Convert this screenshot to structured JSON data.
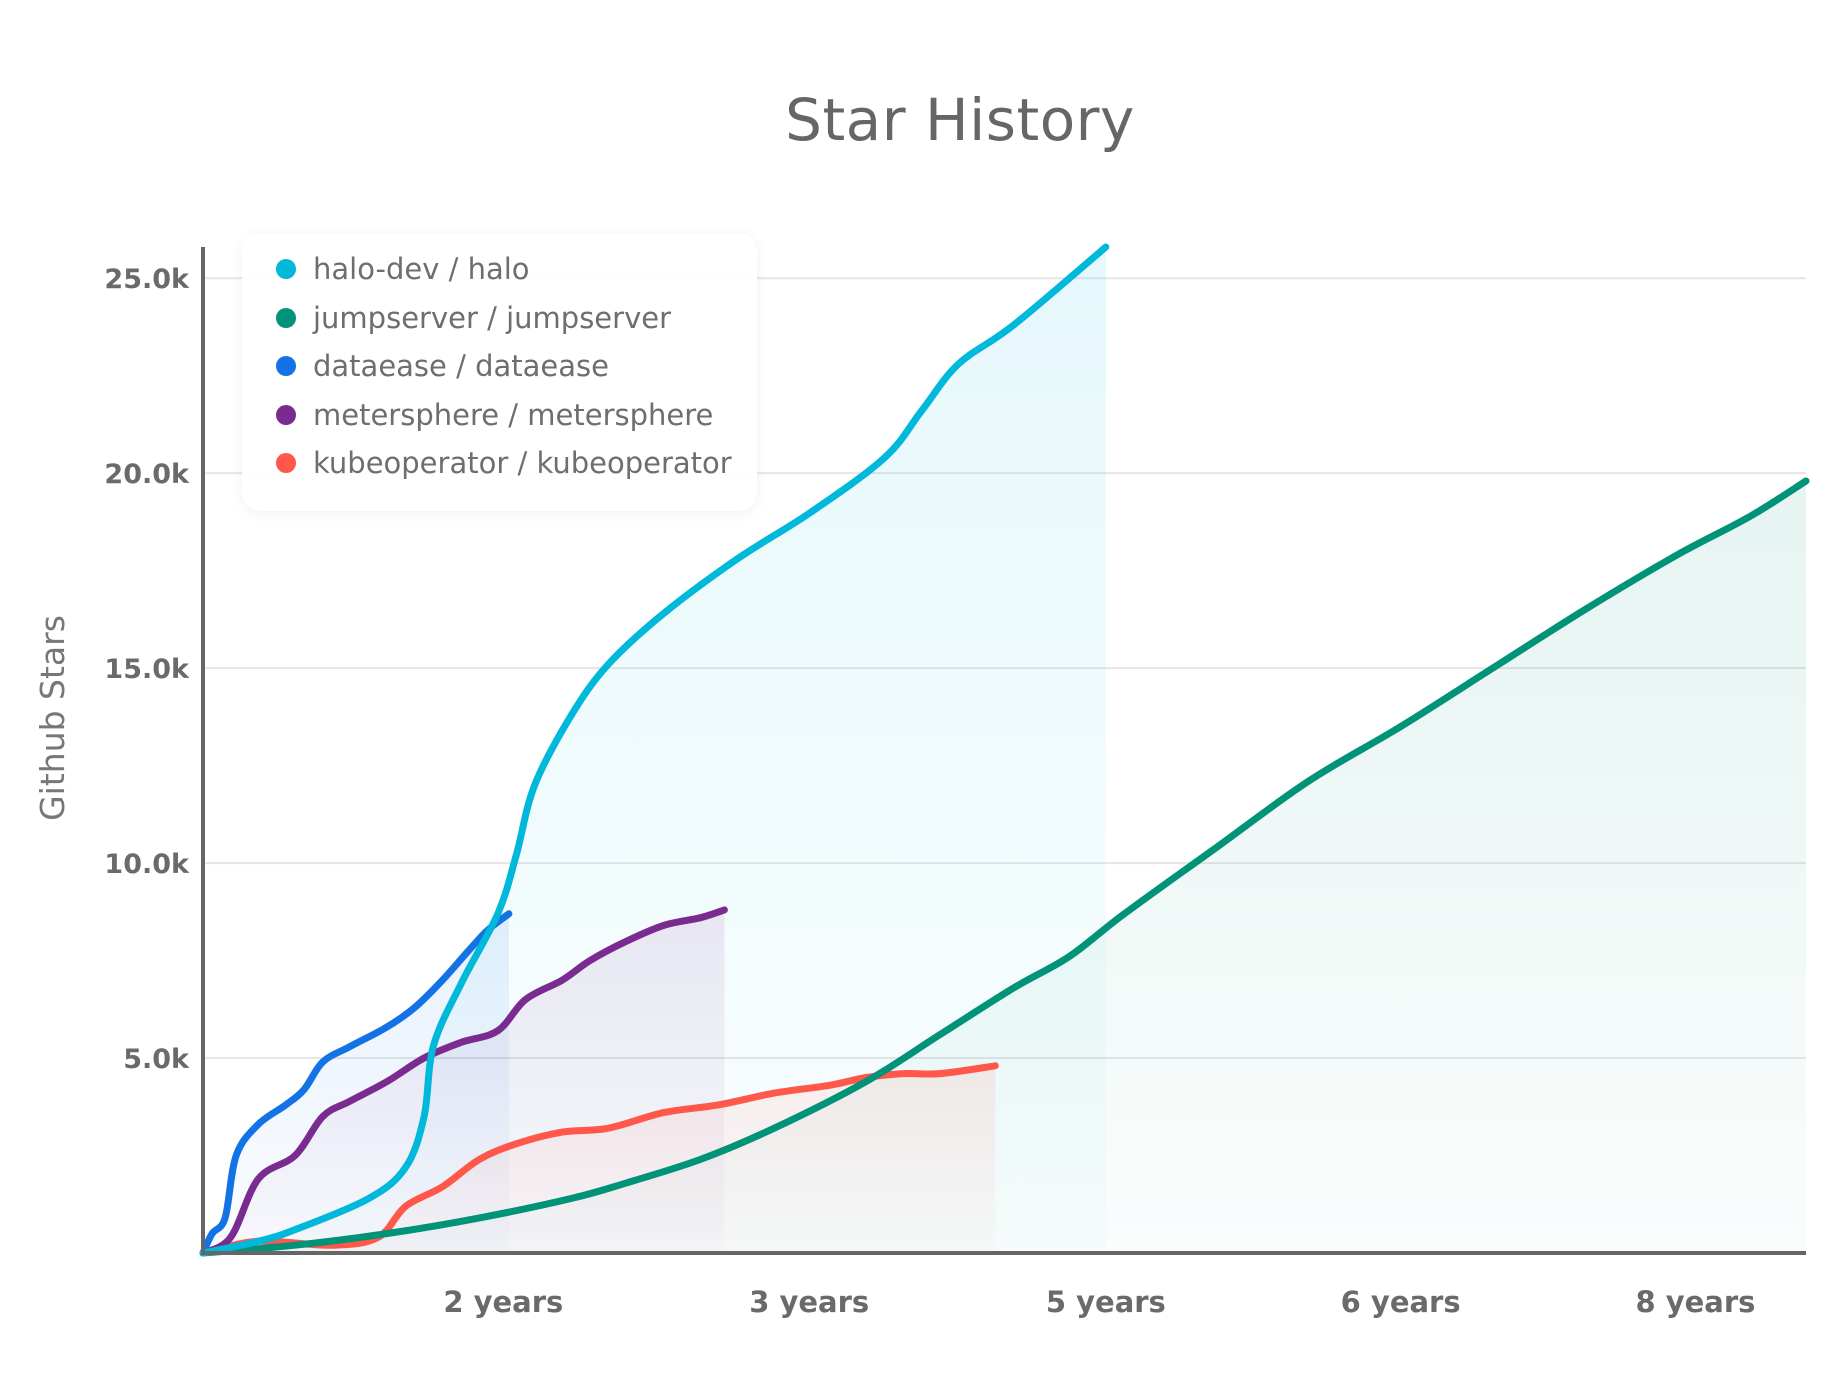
{
  "chart_data": {
    "type": "line",
    "title": "Star History",
    "xlabel": "",
    "ylabel": "Github Stars",
    "xlim": [
      0,
      8.7
    ],
    "ylim": [
      0,
      25800
    ],
    "y_ticks": [
      {
        "value": 5000,
        "label": "5.0k"
      },
      {
        "value": 10000,
        "label": "10.0k"
      },
      {
        "value": 15000,
        "label": "15.0k"
      },
      {
        "value": 20000,
        "label": "20.0k"
      },
      {
        "value": 25000,
        "label": "25.0k"
      }
    ],
    "x_ticks": [
      {
        "value": 1.63,
        "label": "2 years"
      },
      {
        "value": 3.29,
        "label": "3 years"
      },
      {
        "value": 4.9,
        "label": "5 years"
      },
      {
        "value": 6.5,
        "label": "6 years"
      },
      {
        "value": 8.1,
        "label": "8 years"
      }
    ],
    "grid": true,
    "legend_position": "top-left",
    "series": [
      {
        "name": "halo-dev / halo",
        "color": "#00b8d9",
        "points": [
          [
            0,
            0
          ],
          [
            0.3,
            300
          ],
          [
            0.5,
            600
          ],
          [
            0.9,
            1400
          ],
          [
            1.1,
            2200
          ],
          [
            1.2,
            3500
          ],
          [
            1.25,
            5300
          ],
          [
            1.4,
            6900
          ],
          [
            1.6,
            8700
          ],
          [
            1.7,
            10200
          ],
          [
            1.8,
            12000
          ],
          [
            2.0,
            13800
          ],
          [
            2.2,
            15100
          ],
          [
            2.5,
            16400
          ],
          [
            2.9,
            17800
          ],
          [
            3.3,
            19000
          ],
          [
            3.7,
            20400
          ],
          [
            3.9,
            21600
          ],
          [
            4.1,
            22800
          ],
          [
            4.4,
            23800
          ],
          [
            4.9,
            25800
          ]
        ]
      },
      {
        "name": "jumpserver / jumpserver",
        "color": "#009378",
        "points": [
          [
            0,
            0
          ],
          [
            0.5,
            200
          ],
          [
            1.0,
            500
          ],
          [
            1.5,
            900
          ],
          [
            2.0,
            1400
          ],
          [
            2.3,
            1800
          ],
          [
            2.7,
            2400
          ],
          [
            3.1,
            3200
          ],
          [
            3.6,
            4400
          ],
          [
            4.0,
            5600
          ],
          [
            4.4,
            6800
          ],
          [
            4.7,
            7600
          ],
          [
            5.0,
            8700
          ],
          [
            5.5,
            10400
          ],
          [
            6.0,
            12100
          ],
          [
            6.5,
            13500
          ],
          [
            7.0,
            15000
          ],
          [
            7.5,
            16500
          ],
          [
            8.0,
            17900
          ],
          [
            8.4,
            18900
          ],
          [
            8.7,
            19800
          ]
        ]
      },
      {
        "name": "dataease / dataease",
        "color": "#1373e6",
        "points": [
          [
            0,
            0
          ],
          [
            0.05,
            500
          ],
          [
            0.12,
            900
          ],
          [
            0.18,
            2500
          ],
          [
            0.3,
            3300
          ],
          [
            0.45,
            3800
          ],
          [
            0.55,
            4200
          ],
          [
            0.65,
            4900
          ],
          [
            0.8,
            5300
          ],
          [
            1.0,
            5800
          ],
          [
            1.15,
            6300
          ],
          [
            1.3,
            7000
          ],
          [
            1.45,
            7800
          ],
          [
            1.55,
            8300
          ],
          [
            1.66,
            8700
          ]
        ]
      },
      {
        "name": "metersphere / metersphere",
        "color": "#7a2b8f",
        "points": [
          [
            0,
            0
          ],
          [
            0.15,
            400
          ],
          [
            0.3,
            1900
          ],
          [
            0.5,
            2500
          ],
          [
            0.65,
            3500
          ],
          [
            0.8,
            3900
          ],
          [
            1.0,
            4400
          ],
          [
            1.2,
            5000
          ],
          [
            1.4,
            5400
          ],
          [
            1.6,
            5700
          ],
          [
            1.75,
            6500
          ],
          [
            1.95,
            7000
          ],
          [
            2.1,
            7500
          ],
          [
            2.3,
            8000
          ],
          [
            2.5,
            8400
          ],
          [
            2.7,
            8600
          ],
          [
            2.83,
            8800
          ]
        ]
      },
      {
        "name": "kubeoperator / kubeoperator",
        "color": "#ff574a",
        "points": [
          [
            0,
            0
          ],
          [
            0.3,
            300
          ],
          [
            0.7,
            200
          ],
          [
            0.95,
            400
          ],
          [
            1.1,
            1200
          ],
          [
            1.3,
            1700
          ],
          [
            1.5,
            2400
          ],
          [
            1.7,
            2800
          ],
          [
            1.95,
            3100
          ],
          [
            2.2,
            3200
          ],
          [
            2.5,
            3600
          ],
          [
            2.8,
            3800
          ],
          [
            3.1,
            4100
          ],
          [
            3.4,
            4300
          ],
          [
            3.6,
            4500
          ],
          [
            3.8,
            4600
          ],
          [
            4.0,
            4600
          ],
          [
            4.3,
            4800
          ]
        ]
      }
    ]
  }
}
